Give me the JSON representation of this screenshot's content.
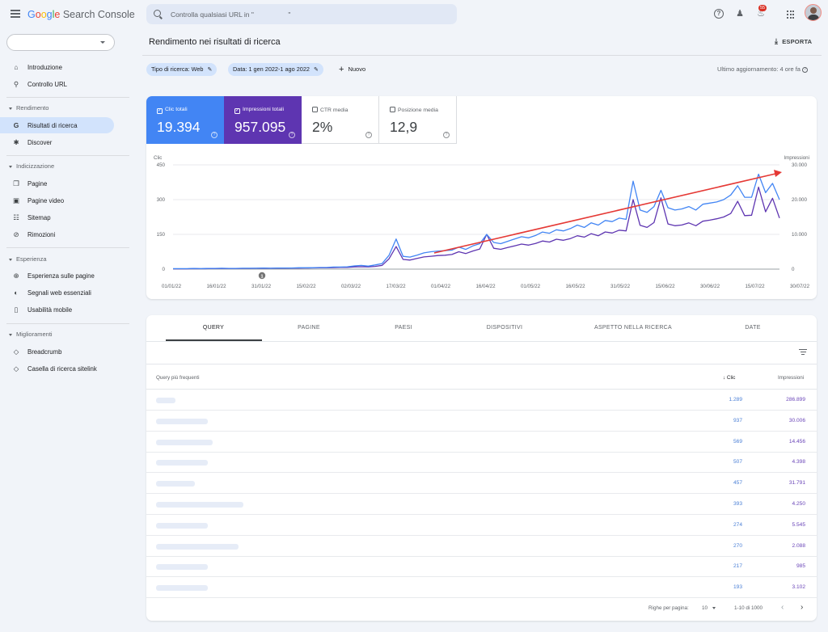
{
  "app": {
    "logo_parts": [
      "G",
      "o",
      "o",
      "g",
      "l",
      "e"
    ],
    "logo_rest": "Search Console"
  },
  "search": {
    "placeholder": "Controlla qualsiasi URL in \"                  \""
  },
  "header": {
    "notification_count": "55"
  },
  "sidebar": {
    "items": [
      {
        "label": "Introduzione",
        "icon": "home-icon"
      },
      {
        "label": "Controllo URL",
        "icon": "search-icon"
      }
    ],
    "sections": [
      {
        "title": "Rendimento",
        "items": [
          {
            "label": "Risultati di ricerca",
            "icon": "google-g-icon",
            "active": true
          },
          {
            "label": "Discover",
            "icon": "asterisk-icon"
          }
        ]
      },
      {
        "title": "Indicizzazione",
        "items": [
          {
            "label": "Pagine",
            "icon": "pages-icon"
          },
          {
            "label": "Pagine video",
            "icon": "video-pages-icon"
          },
          {
            "label": "Sitemap",
            "icon": "sitemap-icon"
          },
          {
            "label": "Rimozioni",
            "icon": "hidden-eye-icon"
          }
        ]
      },
      {
        "title": "Esperienza",
        "items": [
          {
            "label": "Esperienza sulle pagine",
            "icon": "plus-circle-icon"
          },
          {
            "label": "Segnali web essenziali",
            "icon": "gauge-icon"
          },
          {
            "label": "Usabilità mobile",
            "icon": "mobile-icon"
          }
        ]
      },
      {
        "title": "Miglioramenti",
        "items": [
          {
            "label": "Breadcrumb",
            "icon": "layers-icon"
          },
          {
            "label": "Casella di ricerca sitelink",
            "icon": "layers-icon"
          }
        ]
      }
    ]
  },
  "main": {
    "title": "Rendimento nei risultati di ricerca",
    "export_label": "ESPORTA",
    "filters": [
      {
        "label": "Tipo di ricerca: Web"
      },
      {
        "label": "Data: 1 gen 2022-1 ago 2022"
      }
    ],
    "new_label": "Nuovo",
    "last_update": "Ultimo aggiornamento: 4 ore fa",
    "metrics": [
      {
        "label": "Clic totali",
        "value": "19.394",
        "checked": true
      },
      {
        "label": "Impressioni totali",
        "value": "957.095",
        "checked": true
      },
      {
        "label": "CTR media",
        "value": "2%",
        "checked": false
      },
      {
        "label": "Posizione media",
        "value": "12,9",
        "checked": false
      }
    ]
  },
  "chart_data": {
    "type": "line",
    "y_left_label": "Clic",
    "y_right_label": "Impressioni",
    "y_left_ticks": [
      "450",
      "300",
      "150",
      "0"
    ],
    "y_right_ticks": [
      "30.000",
      "20.000",
      "10.000",
      "0"
    ],
    "ylim_left": [
      0,
      450
    ],
    "ylim_right": [
      0,
      30000
    ],
    "x_ticks": [
      "01/01/22",
      "16/01/22",
      "31/01/22",
      "15/02/22",
      "02/03/22",
      "17/03/22",
      "01/04/22",
      "16/04/22",
      "01/05/22",
      "16/05/22",
      "31/05/22",
      "15/06/22",
      "30/06/22",
      "15/07/22",
      "30/07/22"
    ],
    "annotation_marker": "1",
    "colors": {
      "clicks": "#4285f4",
      "impressions": "#5e35b1",
      "trend": "#e53935"
    },
    "series": [
      {
        "name": "Clic totali",
        "axis": "left",
        "values": [
          2,
          2,
          2,
          3,
          2,
          3,
          3,
          4,
          3,
          3,
          4,
          4,
          4,
          5,
          4,
          5,
          5,
          5,
          6,
          6,
          6,
          7,
          7,
          9,
          9,
          10,
          14,
          16,
          13,
          18,
          24,
          60,
          130,
          55,
          52,
          60,
          70,
          75,
          78,
          80,
          82,
          95,
          85,
          100,
          110,
          150,
          115,
          110,
          120,
          130,
          140,
          135,
          145,
          160,
          155,
          170,
          165,
          175,
          190,
          180,
          200,
          190,
          210,
          205,
          220,
          215,
          380,
          255,
          245,
          270,
          340,
          265,
          255,
          260,
          270,
          255,
          280,
          285,
          290,
          300,
          320,
          360,
          310,
          310,
          410,
          330,
          370,
          300
        ]
      },
      {
        "name": "Impressioni totali",
        "axis": "right",
        "values": [
          100,
          100,
          100,
          150,
          120,
          150,
          150,
          200,
          180,
          180,
          200,
          220,
          230,
          250,
          240,
          260,
          280,
          300,
          310,
          330,
          350,
          380,
          400,
          450,
          480,
          500,
          650,
          700,
          650,
          800,
          1100,
          3000,
          6500,
          2800,
          2600,
          3100,
          3500,
          3700,
          3900,
          4000,
          4200,
          5000,
          4500,
          5200,
          5800,
          10000,
          6000,
          5700,
          6200,
          6700,
          7200,
          6900,
          7400,
          8100,
          7800,
          8600,
          8300,
          8800,
          9600,
          9200,
          10200,
          9600,
          10700,
          10400,
          11200,
          11000,
          20000,
          12600,
          12000,
          13400,
          20500,
          13000,
          12500,
          12700,
          13300,
          12500,
          13800,
          14100,
          14500,
          15000,
          16000,
          19500,
          15400,
          15500,
          23600,
          16500,
          20400,
          14700
        ]
      }
    ],
    "legend": "none",
    "grid": true
  },
  "table": {
    "tabs": [
      "QUERY",
      "PAGINE",
      "PAESI",
      "DISPOSITIVI",
      "ASPETTO NELLA RICERCA",
      "DATE"
    ],
    "col_query": "Query più frequenti",
    "col_clicks": "Clic",
    "col_impressions": "Impressioni",
    "rows": [
      {
        "clicks": "1.289",
        "impressions": "286.899"
      },
      {
        "clicks": "937",
        "impressions": "30.006"
      },
      {
        "clicks": "569",
        "impressions": "14.456"
      },
      {
        "clicks": "507",
        "impressions": "4.398"
      },
      {
        "clicks": "457",
        "impressions": "31.791"
      },
      {
        "clicks": "393",
        "impressions": "4.250"
      },
      {
        "clicks": "274",
        "impressions": "5.545"
      },
      {
        "clicks": "270",
        "impressions": "2.088"
      },
      {
        "clicks": "217",
        "impressions": "985"
      },
      {
        "clicks": "193",
        "impressions": "3.102"
      }
    ],
    "rows_per_page_label": "Righe per pagina:",
    "rows_per_page_value": "10",
    "range_label": "1-10 di 1000"
  }
}
